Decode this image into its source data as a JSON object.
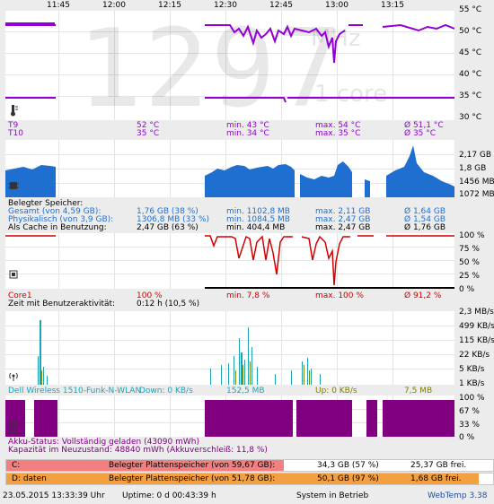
{
  "time_axis": [
    "11:45",
    "12:00",
    "12:15",
    "12:30",
    "12:45",
    "13:00",
    "13:15"
  ],
  "temp_panel": {
    "right_axis": [
      "55 °C",
      "50 °C",
      "45 °C",
      "40 °C",
      "35 °C",
      "30 °C"
    ],
    "watermark_value": "1297",
    "watermark_unit": "MHz",
    "watermark_cores": "1 core",
    "rows": [
      {
        "name": "T9",
        "current": "52 °C",
        "min": "min. 43 °C",
        "max": "max. 54 °C",
        "avg": "Ø 51,1 °C",
        "color": "#9400d3"
      },
      {
        "name": "T10",
        "current": "35 °C",
        "min": "min. 34 °C",
        "max": "max. 35 °C",
        "avg": "Ø 35 °C",
        "color": "#9400d3"
      }
    ],
    "icon": "thermometer-icon"
  },
  "memory_panel": {
    "right_axis": [
      "2,17 GB",
      "1,8 GB",
      "1456 MB",
      "1072 MB"
    ],
    "heading": "Belegter Speicher:",
    "rows": [
      {
        "name": "Gesamt (von 4,59 GB):",
        "current": "1,76 GB (38 %)",
        "min": "min. 1102,8 MB",
        "max": "max. 2,11 GB",
        "avg": "Ø 1,64 GB"
      },
      {
        "name": "Physikalisch (von 3,9 GB):",
        "current": "1306,8 MB (33 %)",
        "min": "min. 1084,5 MB",
        "max": "max. 2,47 GB",
        "avg": "Ø 1,54 GB"
      },
      {
        "name": "Als Cache in Benutzung:",
        "current": "2,47 GB (63 %)",
        "min": "min. 404,4 MB",
        "max": "max. 2,47 GB",
        "avg": "Ø 1,76 GB"
      }
    ],
    "icon": "memory-chip-icon"
  },
  "cpu_panel": {
    "right_axis": [
      "100 %",
      "75 %",
      "50 %",
      "25 %",
      "0 %"
    ],
    "row": {
      "name": "Core1",
      "current": "100 %",
      "min": "min. 7,8 %",
      "max": "max. 100 %",
      "avg": "Ø 91,2 %"
    },
    "activity_label": "Zeit mit Benutzeraktivität:",
    "activity_value": "0:12 h (10,5 %)",
    "icon": "cpu-icon"
  },
  "network_panel": {
    "right_axis": [
      "2,3 MB/s",
      "499 KB/s",
      "115 KB/s",
      "22 KB/s",
      "5 KB/s",
      "1 KB/s"
    ],
    "adapter": "Dell Wireless 1510-Funk-N-WLAN",
    "down": "Down: 0 KB/s",
    "down_total": "152,5 MB",
    "up": "Up: 0 KB/s",
    "up_total": "7,5 MB",
    "icon": "wifi-antenna-icon"
  },
  "battery_panel": {
    "right_axis": [
      "100 %",
      "67 %",
      "33 %",
      "0 %"
    ],
    "status": "Akku-Status: Vollständig geladen (43090 mWh)",
    "capacity": "Kapazität im Neuzustand: 48840 mWh (Akkuverschleiß: 11,8 %)",
    "icon": "battery-charging-icon"
  },
  "disks": [
    {
      "drive": "C:",
      "label": "Belegter Plattenspeicher (von 59,67 GB):",
      "used": "34,3 GB (57 %)",
      "free": "25,37 GB frei.",
      "percent": 57,
      "color": "#f28080"
    },
    {
      "drive": "D: daten",
      "label": "Belegter Plattenspeicher (von 51,78 GB):",
      "used": "50,1 GB (97 %)",
      "free": "1,68 GB frei.",
      "percent": 97,
      "color": "#f5a040"
    }
  ],
  "statusbar": {
    "datetime": "23.05.2015 13:33:39 Uhr",
    "uptime": "Uptime: 0 d 00:43:39 h",
    "system": "System in Betrieb",
    "app": "WebTemp 3.38"
  }
}
